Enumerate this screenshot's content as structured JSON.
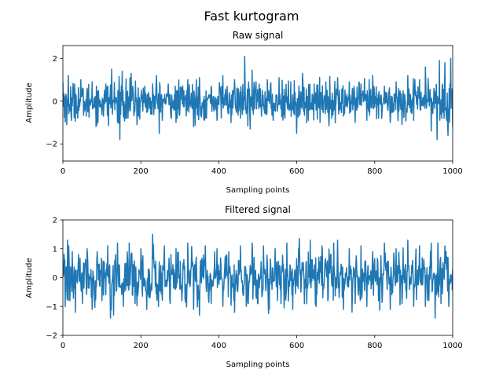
{
  "figure": {
    "title": "Fast kurtogram"
  },
  "chart_data": [
    {
      "type": "line",
      "title": "Raw signal",
      "xlabel": "Sampling points",
      "ylabel": "Amplitude",
      "xlim": [
        0,
        1000
      ],
      "ylim": [
        -2.8,
        2.6
      ],
      "xticks": [
        0,
        200,
        400,
        600,
        800,
        1000
      ],
      "yticks": [
        -2,
        0,
        2
      ],
      "grid": false,
      "series": [
        {
          "color": "#1f77b4",
          "n_points": 1000,
          "mean": 0,
          "y_range": [
            -1.8,
            2.1
          ],
          "x": [
            0,
            10,
            14,
            22,
            30,
            38,
            46,
            60,
            75,
            90,
            110,
            125,
            140,
            152,
            160,
            175,
            190,
            210,
            225,
            240,
            255,
            270,
            290,
            305,
            320,
            335,
            350,
            365,
            380,
            395,
            410,
            425,
            440,
            455,
            466,
            480,
            495,
            510,
            525,
            540,
            555,
            570,
            585,
            600,
            615,
            630,
            645,
            660,
            675,
            690,
            705,
            720,
            735,
            750,
            765,
            780,
            795,
            810,
            825,
            840,
            855,
            870,
            885,
            900,
            915,
            930,
            945,
            952,
            960,
            966,
            972,
            980,
            988,
            995,
            1000
          ],
          "y": [
            0.9,
            -1.1,
            1.2,
            -0.9,
            0.8,
            -0.8,
            1.0,
            -0.7,
            0.9,
            -1.0,
            0.8,
            1.5,
            -1.0,
            1.4,
            -0.8,
            1.3,
            -1.1,
            0.7,
            -0.6,
            1.2,
            -0.9,
            0.8,
            -1.0,
            0.6,
            1.0,
            -1.2,
            1.1,
            -0.8,
            0.7,
            -0.9,
            1.2,
            -0.6,
            1.0,
            -0.8,
            2.1,
            -1.3,
            0.9,
            -0.7,
            1.0,
            -0.9,
            1.1,
            -0.8,
            0.9,
            -1.5,
            1.3,
            -0.9,
            0.8,
            -1.0,
            0.9,
            -0.8,
            1.1,
            -0.7,
            0.9,
            -1.0,
            0.8,
            -0.9,
            1.2,
            -0.8,
            0.7,
            -1.0,
            0.9,
            -1.1,
            1.2,
            -0.9,
            1.0,
            1.6,
            -1.4,
            0.6,
            -1.8,
            1.9,
            -0.8,
            1.8,
            -1.6,
            2.0,
            -1.2
          ]
        }
      ]
    },
    {
      "type": "line",
      "title": "Filtered signal",
      "xlabel": "Sampling points",
      "ylabel": "Amplitude",
      "xlim": [
        0,
        1000
      ],
      "ylim": [
        -2,
        2
      ],
      "xticks": [
        0,
        200,
        400,
        600,
        800,
        1000
      ],
      "yticks": [
        -2,
        -1,
        0,
        1,
        2
      ],
      "grid": false,
      "series": [
        {
          "color": "#1f77b4",
          "n_points": 1000,
          "mean": 0,
          "y_range": [
            -1.4,
            1.5
          ],
          "x": [
            0,
            6,
            12,
            18,
            24,
            32,
            40,
            50,
            62,
            75,
            88,
            100,
            115,
            130,
            140,
            155,
            170,
            185,
            200,
            215,
            230,
            245,
            260,
            275,
            290,
            305,
            320,
            335,
            350,
            365,
            380,
            395,
            410,
            425,
            440,
            455,
            470,
            485,
            500,
            515,
            530,
            545,
            560,
            575,
            590,
            605,
            620,
            635,
            650,
            665,
            680,
            695,
            705,
            720,
            735,
            750,
            765,
            780,
            795,
            810,
            825,
            840,
            855,
            870,
            885,
            900,
            915,
            930,
            945,
            955,
            962,
            970,
            980,
            990,
            1000
          ],
          "y": [
            0.5,
            -1.0,
            1.3,
            -0.8,
            0.9,
            -1.2,
            0.8,
            -0.9,
            1.0,
            -1.1,
            0.9,
            -0.8,
            1.1,
            -1.3,
            1.2,
            -1.0,
            1.2,
            -0.9,
            1.0,
            -1.1,
            1.5,
            -1.0,
            1.1,
            -0.9,
            1.0,
            -0.8,
            1.2,
            -1.1,
            -1.3,
            1.1,
            -0.9,
            1.0,
            -1.0,
            0.9,
            -1.2,
            1.1,
            -1.0,
            1.2,
            -0.9,
            1.1,
            -1.1,
            1.0,
            -0.9,
            1.2,
            -1.1,
            1.0,
            -0.9,
            1.3,
            -1.0,
            1.1,
            -0.8,
            1.2,
            1.3,
            -1.1,
            1.0,
            -0.9,
            1.1,
            -1.0,
            0.9,
            -0.8,
            1.2,
            -1.1,
            1.0,
            -0.9,
            1.3,
            -1.0,
            1.1,
            -1.0,
            1.2,
            -1.4,
            1.2,
            -0.9,
            1.1,
            -1.0,
            0.3
          ]
        }
      ]
    }
  ]
}
